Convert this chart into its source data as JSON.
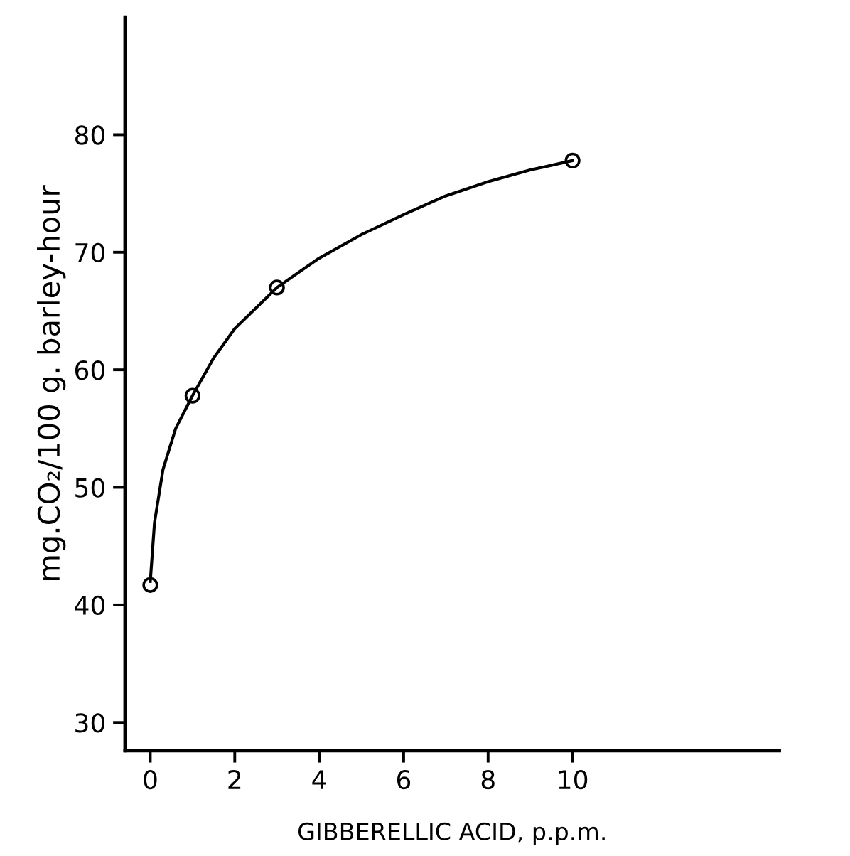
{
  "chart_data": {
    "type": "scatter",
    "xlabel": "GIBBERELLIC ACID, p.p.m.",
    "ylabel": "mg.CO₂/100 g. barley-hour",
    "xlim": [
      -0.6,
      14.9
    ],
    "ylim": [
      27.6,
      90
    ],
    "xticks": [
      0,
      2,
      4,
      6,
      8,
      10
    ],
    "yticks": [
      30,
      40,
      50,
      60,
      70,
      80
    ],
    "grid": false,
    "legend": false,
    "series": [
      {
        "color": "#000000",
        "marker": "circle",
        "x": [
          0,
          1,
          3,
          10
        ],
        "values": [
          41.7,
          57.8,
          67,
          77.8
        ]
      },
      {
        "type": "line",
        "color": "#000000",
        "marker": "none",
        "line_style": "solid",
        "x": [
          0,
          0.1,
          0.3,
          0.6,
          1,
          1.5,
          2,
          3,
          4,
          5,
          6,
          7,
          8,
          9,
          10
        ],
        "values": [
          42,
          47,
          51.5,
          55,
          57.8,
          61,
          63.5,
          67,
          69.5,
          71.5,
          73.2,
          74.8,
          76,
          77,
          77.8
        ]
      }
    ]
  }
}
